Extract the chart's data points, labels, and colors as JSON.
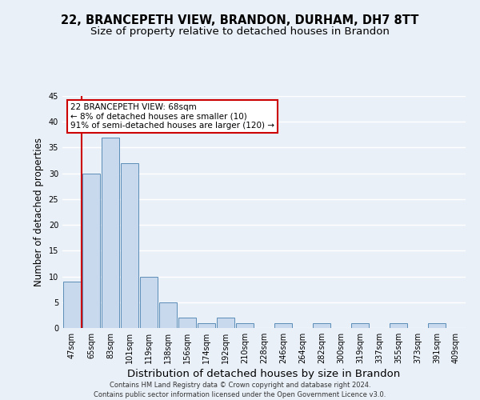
{
  "title_line1": "22, BRANCEPETH VIEW, BRANDON, DURHAM, DH7 8TT",
  "title_line2": "Size of property relative to detached houses in Brandon",
  "xlabel": "Distribution of detached houses by size in Brandon",
  "ylabel": "Number of detached properties",
  "categories": [
    "47sqm",
    "65sqm",
    "83sqm",
    "101sqm",
    "119sqm",
    "138sqm",
    "156sqm",
    "174sqm",
    "192sqm",
    "210sqm",
    "228sqm",
    "246sqm",
    "264sqm",
    "282sqm",
    "300sqm",
    "319sqm",
    "337sqm",
    "355sqm",
    "373sqm",
    "391sqm",
    "409sqm"
  ],
  "values": [
    9,
    30,
    37,
    32,
    10,
    5,
    2,
    1,
    2,
    1,
    0,
    1,
    0,
    1,
    0,
    1,
    0,
    1,
    0,
    1,
    0
  ],
  "bar_color": "#c9d9ed",
  "bar_edge_color": "#5b8db8",
  "highlight_idx": 1,
  "highlight_color": "#cc0000",
  "ylim": [
    0,
    45
  ],
  "yticks": [
    0,
    5,
    10,
    15,
    20,
    25,
    30,
    35,
    40,
    45
  ],
  "annotation_text": "22 BRANCEPETH VIEW: 68sqm\n← 8% of detached houses are smaller (10)\n91% of semi-detached houses are larger (120) →",
  "annotation_box_facecolor": "#ffffff",
  "annotation_box_edgecolor": "#cc0000",
  "footer_line1": "Contains HM Land Registry data © Crown copyright and database right 2024.",
  "footer_line2": "Contains public sector information licensed under the Open Government Licence v3.0.",
  "background_color": "#eaf0f8",
  "grid_color": "#ffffff",
  "title_fontsize": 10.5,
  "subtitle_fontsize": 9.5,
  "tick_fontsize": 7,
  "ylabel_fontsize": 8.5,
  "xlabel_fontsize": 9.5,
  "annotation_fontsize": 7.5,
  "footer_fontsize": 6.0
}
